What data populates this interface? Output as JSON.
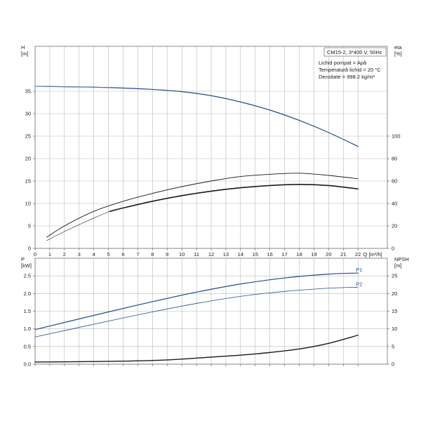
{
  "legend": {
    "title": "CM15-2, 3*400 V, 50Hz",
    "lines": [
      "Lichid pompat = Apă",
      "Temperatură lichid = 20 °C",
      "Densitate = 998.2 kg/m³"
    ]
  },
  "chart_data": [
    {
      "type": "line",
      "name": "head-efficiency",
      "xlabel": "Q [m³/h]",
      "xlim": [
        0,
        24
      ],
      "xticks": [
        0,
        1,
        2,
        3,
        4,
        5,
        6,
        7,
        8,
        9,
        10,
        11,
        12,
        13,
        14,
        15,
        16,
        17,
        18,
        19,
        20,
        21,
        22
      ],
      "y_left": {
        "label_top": "H",
        "label_unit": "[m]",
        "lim": [
          0,
          45
        ],
        "ticks": [
          0,
          5,
          10,
          15,
          20,
          25,
          30,
          35
        ]
      },
      "y_right": {
        "label_top": "eta",
        "label_unit": "[%]",
        "lim": [
          0,
          180
        ],
        "ticks": [
          0,
          20,
          40,
          60,
          80,
          100
        ]
      },
      "grid": true,
      "series": [
        {
          "name": "",
          "axis": "left",
          "color": "#1f4e8c",
          "width": 1.2,
          "x": [
            0,
            2,
            4,
            6,
            8,
            10,
            12,
            14,
            16,
            18,
            20,
            22
          ],
          "y": [
            36.1,
            36.0,
            35.9,
            35.7,
            35.4,
            34.9,
            34.0,
            32.6,
            30.8,
            28.5,
            25.8,
            22.7
          ]
        },
        {
          "name": "",
          "axis": "left",
          "color": "#6f7f9c",
          "width": 0.8,
          "x": [
            0,
            2,
            4,
            5.1
          ],
          "y": [
            36.1,
            36.0,
            35.9,
            35.8
          ]
        },
        {
          "name": "",
          "axis": "right",
          "color": "#1a1a1a",
          "width": 0.9,
          "x": [
            0.8,
            2,
            4,
            6,
            8,
            10,
            12,
            14,
            16,
            18,
            20,
            22
          ],
          "y": [
            10,
            20,
            33,
            42,
            49,
            55,
            60,
            64,
            66,
            67,
            65,
            62
          ]
        },
        {
          "name": "",
          "axis": "right",
          "color": "#1a1a1a",
          "width": 1.6,
          "x": [
            5.1,
            6,
            8,
            10,
            12,
            14,
            16,
            18,
            20,
            22
          ],
          "y": [
            33,
            36,
            42,
            47,
            51,
            54,
            56,
            57,
            56,
            53
          ]
        },
        {
          "name": "",
          "axis": "right",
          "color": "#1a1a1a",
          "width": 0.6,
          "x": [
            0.8,
            2,
            4,
            5.1
          ],
          "y": [
            7,
            15,
            27,
            33
          ]
        }
      ]
    },
    {
      "type": "line",
      "name": "power-npsh",
      "xlim": [
        0,
        24
      ],
      "xticks": [
        0,
        1,
        2,
        3,
        4,
        5,
        6,
        7,
        8,
        9,
        10,
        11,
        12,
        13,
        14,
        15,
        16,
        17,
        18,
        19,
        20,
        21,
        22
      ],
      "y_left": {
        "label_top": "P",
        "label_unit": "[kW]",
        "lim": [
          0,
          3.0
        ],
        "ticks": [
          0.0,
          0.5,
          1.0,
          1.5,
          2.0,
          2.5
        ],
        "decimals": 1
      },
      "y_right": {
        "label_top": "NPSH",
        "label_unit": "[m]",
        "lim": [
          0,
          30
        ],
        "ticks": [
          0,
          5,
          10,
          15,
          20,
          25
        ]
      },
      "grid": true,
      "series": [
        {
          "name": "P1",
          "axis": "left",
          "color": "#1f4e8c",
          "width": 1.2,
          "label_color": "#1f4e8c",
          "x": [
            0,
            5,
            8,
            11,
            14,
            17,
            20,
            22
          ],
          "y": [
            0.98,
            1.48,
            1.77,
            2.04,
            2.27,
            2.44,
            2.55,
            2.58
          ]
        },
        {
          "name": "P2",
          "axis": "left",
          "color": "#1f4e8c",
          "width": 0.8,
          "label_color": "#1f4e8c",
          "x": [
            0,
            5,
            8,
            11,
            14,
            17,
            20,
            22
          ],
          "y": [
            0.77,
            1.22,
            1.48,
            1.72,
            1.92,
            2.06,
            2.15,
            2.18
          ]
        },
        {
          "name": "",
          "axis": "right",
          "color": "#1a1a1a",
          "width": 1.4,
          "x": [
            0,
            3,
            6,
            9,
            12,
            15,
            18,
            20,
            22
          ],
          "y": [
            0.6,
            0.7,
            0.85,
            1.2,
            2.0,
            2.9,
            4.3,
            5.9,
            8.2
          ]
        }
      ]
    }
  ]
}
